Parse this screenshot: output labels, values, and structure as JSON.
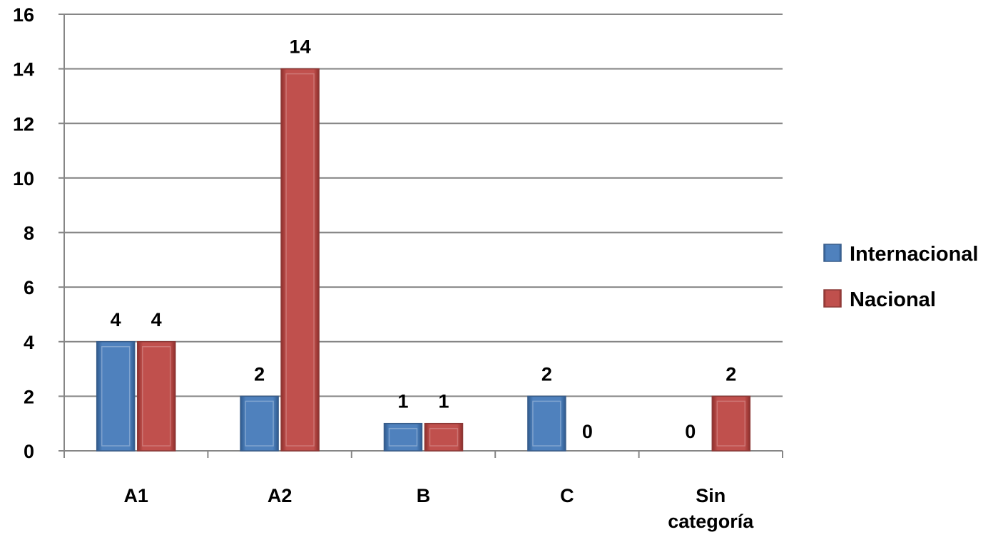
{
  "chart_data": {
    "type": "bar",
    "title": "",
    "xlabel": "",
    "ylabel": "",
    "categories": [
      "A1",
      "A2",
      "B",
      "C",
      "Sin categoría"
    ],
    "series": [
      {
        "name": "Internacional",
        "values": [
          4,
          2,
          1,
          2,
          0
        ],
        "color": "#4f81bd"
      },
      {
        "name": "Nacional",
        "values": [
          4,
          14,
          1,
          0,
          2
        ],
        "color": "#c0504d"
      }
    ],
    "ylim": [
      0,
      16
    ],
    "yticks": [
      0,
      2,
      4,
      6,
      8,
      10,
      12,
      14,
      16
    ],
    "grid": true,
    "legend_position": "right",
    "data_labels": true
  }
}
